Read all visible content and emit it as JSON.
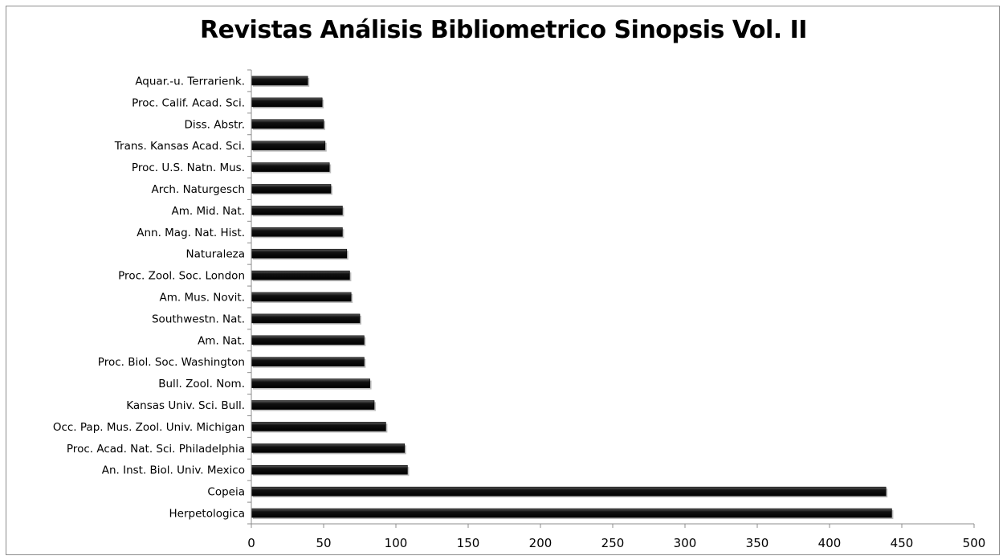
{
  "chart_data": {
    "type": "bar",
    "orientation": "horizontal",
    "title": "Revistas Análisis Bibliometrico Sinopsis Vol. II",
    "xlabel": "",
    "ylabel": "",
    "xlim": [
      0,
      500
    ],
    "x_ticks": [
      "0",
      "50",
      "100",
      "150",
      "200",
      "250",
      "300",
      "350",
      "400",
      "450",
      "500"
    ],
    "x_tick_values": [
      0,
      50,
      100,
      150,
      200,
      250,
      300,
      350,
      400,
      450,
      500
    ],
    "grid": false,
    "legend": "none",
    "categories": [
      "Aquar.-u. Terrarienk.",
      "Proc. Calif. Acad. Sci.",
      "Diss. Abstr.",
      "Trans. Kansas Acad. Sci.",
      "Proc. U.S. Natn. Mus.",
      "Arch. Naturgesch",
      "Am. Mid. Nat.",
      "Ann. Mag. Nat. Hist.",
      "Naturaleza",
      "Proc. Zool. Soc. London",
      "Am. Mus. Novit.",
      "Southwestn. Nat.",
      "Am. Nat.",
      "Proc. Biol. Soc. Washington",
      "Bull. Zool. Nom.",
      "Kansas Univ. Sci. Bull.",
      "Occ. Pap. Mus. Zool. Univ. Michigan",
      "Proc. Acad. Nat. Sci. Philadelphia",
      "An. Inst. Biol. Univ. Mexico",
      "Copeia",
      "Herpetologica"
    ],
    "values": [
      39,
      49,
      50,
      51,
      54,
      55,
      63,
      63,
      66,
      68,
      69,
      75,
      78,
      78,
      82,
      85,
      93,
      106,
      108,
      439,
      443
    ],
    "colors": {
      "bar": "#000000",
      "bar_highlight": "#7a7a7a",
      "axis": "#8c8c8c"
    }
  }
}
